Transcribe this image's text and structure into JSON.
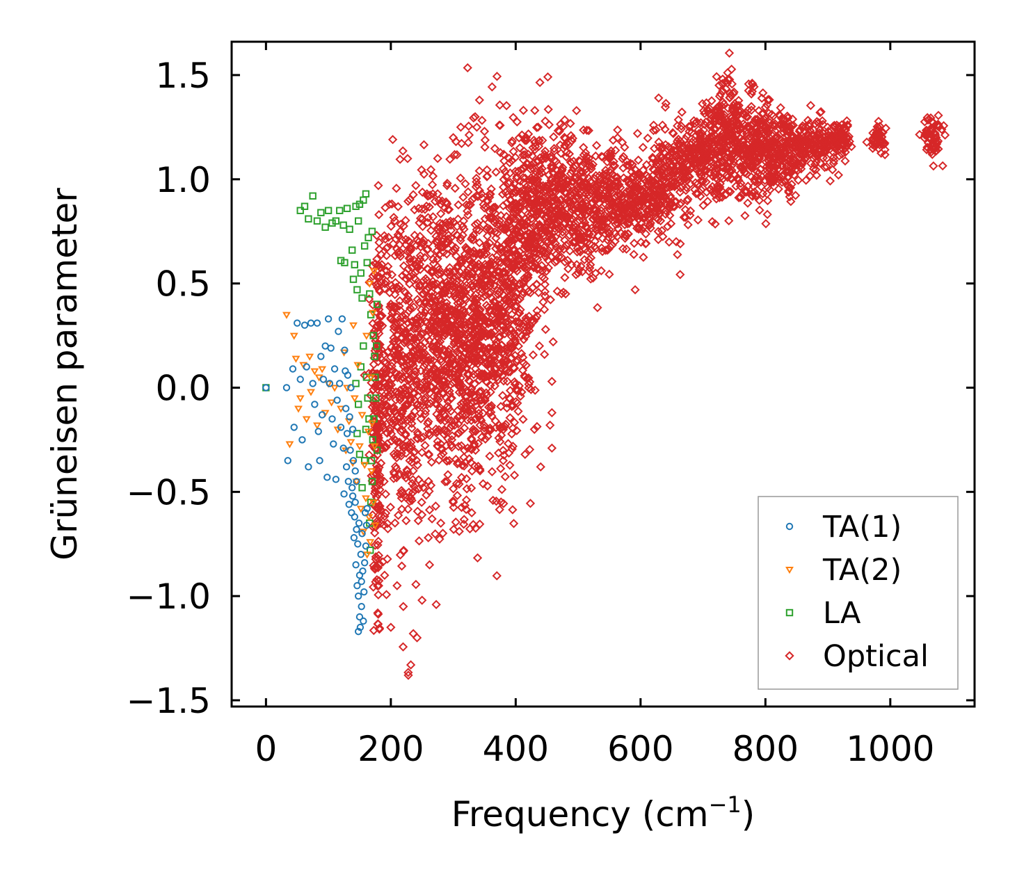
{
  "chart_data": {
    "type": "scatter",
    "title": "",
    "xlabel": "Frequency (cm",
    "xlabel_sup": "−1",
    "xlabel_close": ")",
    "ylabel": "Grüneisen parameter",
    "xlim": [
      -55,
      1135
    ],
    "ylim": [
      -1.53,
      1.66
    ],
    "xticks": [
      0,
      200,
      400,
      600,
      800,
      1000
    ],
    "xtick_labels": [
      "0",
      "200",
      "400",
      "600",
      "800",
      "1000"
    ],
    "yticks": [
      -1.5,
      -1.0,
      -0.5,
      0.0,
      0.5,
      1.0,
      1.5
    ],
    "ytick_labels": [
      "−1.5",
      "−1.0",
      "−0.5",
      "0.0",
      "0.5",
      "1.0",
      "1.5"
    ],
    "grid": false,
    "legend_position": "lower-right",
    "series": [
      {
        "name": "TA(1)",
        "marker": "circle",
        "color": "#1f77b4",
        "points": [
          [
            0,
            0.0
          ],
          [
            33,
            0.0
          ],
          [
            35,
            -0.35
          ],
          [
            43,
            0.09
          ],
          [
            45,
            -0.19
          ],
          [
            50,
            0.31
          ],
          [
            55,
            0.04
          ],
          [
            58,
            -0.25
          ],
          [
            62,
            0.3
          ],
          [
            65,
            0.1
          ],
          [
            68,
            -0.38
          ],
          [
            72,
            0.31
          ],
          [
            75,
            0.02
          ],
          [
            78,
            -0.08
          ],
          [
            82,
            0.31
          ],
          [
            84,
            -0.21
          ],
          [
            86,
            -0.35
          ],
          [
            88,
            0.15
          ],
          [
            90,
            -0.13
          ],
          [
            92,
            0.04
          ],
          [
            95,
            0.2
          ],
          [
            98,
            -0.43
          ],
          [
            100,
            0.33
          ],
          [
            102,
            0.02
          ],
          [
            104,
            0.19
          ],
          [
            106,
            -0.15
          ],
          [
            108,
            -0.27
          ],
          [
            110,
            0.09
          ],
          [
            112,
            -0.44
          ],
          [
            114,
            -0.06
          ],
          [
            116,
            0.27
          ],
          [
            118,
            0.02
          ],
          [
            120,
            -0.19
          ],
          [
            122,
            0.33
          ],
          [
            124,
            -0.29
          ],
          [
            125,
            -0.51
          ],
          [
            126,
            0.18
          ],
          [
            127,
            0.08
          ],
          [
            128,
            -0.1
          ],
          [
            129,
            -0.38
          ],
          [
            130,
            -0.22
          ],
          [
            131,
            0.06
          ],
          [
            132,
            -0.45
          ],
          [
            133,
            -0.56
          ],
          [
            134,
            -0.14
          ],
          [
            135,
            -0.3
          ],
          [
            136,
            0.0
          ],
          [
            137,
            -0.6
          ],
          [
            138,
            -0.48
          ],
          [
            139,
            -0.2
          ],
          [
            140,
            -0.35
          ],
          [
            141,
            -0.72
          ],
          [
            142,
            -0.62
          ],
          [
            143,
            -0.55
          ],
          [
            144,
            -0.85
          ],
          [
            145,
            -0.45
          ],
          [
            146,
            -0.95
          ],
          [
            147,
            -0.75
          ],
          [
            148,
            -1.0
          ],
          [
            149,
            -0.65
          ],
          [
            150,
            -0.9
          ],
          [
            151,
            -1.15
          ],
          [
            152,
            -0.8
          ],
          [
            153,
            -1.05
          ],
          [
            154,
            -0.7
          ],
          [
            155,
            -0.88
          ],
          [
            156,
            -1.12
          ],
          [
            157,
            -0.98
          ],
          [
            158,
            -0.84
          ],
          [
            159,
            -0.6
          ],
          [
            160,
            -0.76
          ],
          [
            161,
            -0.66
          ],
          [
            162,
            -0.58
          ],
          [
            148,
            -1.17
          ],
          [
            150,
            -1.1
          ],
          [
            153,
            -0.93
          ],
          [
            145,
            -0.68
          ],
          [
            143,
            -0.4
          ],
          [
            139,
            -0.52
          ]
        ]
      },
      {
        "name": "TA(2)",
        "marker": "triangle-down",
        "color": "#ff7f0e",
        "points": [
          [
            33,
            0.35
          ],
          [
            38,
            -0.27
          ],
          [
            45,
            0.25
          ],
          [
            48,
            0.14
          ],
          [
            52,
            -0.1
          ],
          [
            55,
            -0.05
          ],
          [
            60,
            0.11
          ],
          [
            65,
            -0.15
          ],
          [
            70,
            0.15
          ],
          [
            72,
            -0.02
          ],
          [
            78,
            0.08
          ],
          [
            82,
            -0.18
          ],
          [
            85,
            0.05
          ],
          [
            90,
            0.09
          ],
          [
            95,
            -0.12
          ],
          [
            100,
            0.02
          ],
          [
            105,
            -0.07
          ],
          [
            110,
            0.0
          ],
          [
            115,
            -0.2
          ],
          [
            120,
            -0.1
          ],
          [
            125,
            0.17
          ],
          [
            128,
            -0.3
          ],
          [
            130,
            0.0
          ],
          [
            133,
            -0.16
          ],
          [
            136,
            -0.26
          ],
          [
            139,
            -0.36
          ],
          [
            140,
            0.3
          ],
          [
            142,
            -0.05
          ],
          [
            145,
            -0.45
          ],
          [
            147,
            0.11
          ],
          [
            150,
            -0.28
          ],
          [
            152,
            -0.58
          ],
          [
            154,
            -0.13
          ],
          [
            156,
            -0.69
          ],
          [
            158,
            -0.37
          ],
          [
            160,
            -0.53
          ],
          [
            161,
            0.25
          ],
          [
            162,
            -0.8
          ],
          [
            164,
            -0.21
          ],
          [
            165,
            -0.62
          ],
          [
            166,
            0.5
          ],
          [
            167,
            -0.74
          ],
          [
            168,
            0.05
          ],
          [
            169,
            -0.4
          ],
          [
            170,
            -0.17
          ],
          [
            171,
            0.36
          ],
          [
            172,
            -0.55
          ],
          [
            173,
            0.56
          ],
          [
            174,
            -0.28
          ],
          [
            175,
            -0.66
          ]
        ]
      },
      {
        "name": "LA",
        "marker": "square",
        "color": "#2ca02c",
        "points": [
          [
            0,
            0.0
          ],
          [
            55,
            0.85
          ],
          [
            62,
            0.87
          ],
          [
            68,
            0.81
          ],
          [
            75,
            0.92
          ],
          [
            82,
            0.8
          ],
          [
            88,
            0.84
          ],
          [
            95,
            0.77
          ],
          [
            100,
            0.85
          ],
          [
            106,
            0.79
          ],
          [
            112,
            0.8
          ],
          [
            118,
            0.85
          ],
          [
            120,
            0.61
          ],
          [
            124,
            0.78
          ],
          [
            126,
            0.6
          ],
          [
            130,
            0.86
          ],
          [
            134,
            0.76
          ],
          [
            138,
            0.66
          ],
          [
            140,
            0.52
          ],
          [
            142,
            0.59
          ],
          [
            144,
            0.87
          ],
          [
            146,
            0.47
          ],
          [
            148,
            0.8
          ],
          [
            150,
            0.88
          ],
          [
            152,
            0.55
          ],
          [
            154,
            0.43
          ],
          [
            156,
            0.9
          ],
          [
            158,
            0.68
          ],
          [
            160,
            0.93
          ],
          [
            162,
            0.6
          ],
          [
            164,
            0.72
          ],
          [
            166,
            0.45
          ],
          [
            168,
            0.35
          ],
          [
            170,
            0.75
          ],
          [
            172,
            0.25
          ],
          [
            174,
            0.15
          ],
          [
            175,
            0.05
          ],
          [
            176,
            -0.05
          ],
          [
            173,
            -0.15
          ],
          [
            171,
            -0.25
          ],
          [
            169,
            -0.35
          ],
          [
            170,
            -0.45
          ],
          [
            168,
            -0.55
          ],
          [
            166,
            -0.65
          ],
          [
            167,
            -0.78
          ],
          [
            165,
            -0.15
          ],
          [
            163,
            -0.05
          ],
          [
            161,
            0.05
          ],
          [
            160,
            -0.2
          ],
          [
            158,
            -0.35
          ],
          [
            156,
            0.2
          ],
          [
            154,
            -0.48
          ],
          [
            152,
            0.1
          ],
          [
            150,
            -0.32
          ],
          [
            148,
            -0.08
          ],
          [
            146,
            -0.22
          ],
          [
            144,
            0.02
          ],
          [
            178,
            0.4
          ],
          [
            178,
            -0.3
          ],
          [
            177,
            0.2
          ]
        ]
      },
      {
        "name": "Optical",
        "marker": "diamond",
        "color": "#d62728",
        "blobs": [
          {
            "x": 178,
            "y": -0.2,
            "sx": 5,
            "sy": 0.55,
            "n": 170
          },
          {
            "x": 205,
            "y": 0.05,
            "sx": 16,
            "sy": 0.45,
            "n": 240
          },
          {
            "x": 240,
            "y": 0.1,
            "sx": 24,
            "sy": 0.38,
            "n": 320
          },
          {
            "x": 280,
            "y": 0.3,
            "sx": 26,
            "sy": 0.36,
            "n": 380
          },
          {
            "x": 320,
            "y": 0.25,
            "sx": 24,
            "sy": 0.4,
            "n": 380
          },
          {
            "x": 360,
            "y": 0.35,
            "sx": 24,
            "sy": 0.38,
            "n": 360
          },
          {
            "x": 395,
            "y": 0.45,
            "sx": 22,
            "sy": 0.38,
            "n": 300
          },
          {
            "x": 425,
            "y": 0.85,
            "sx": 20,
            "sy": 0.22,
            "n": 240
          },
          {
            "x": 465,
            "y": 0.9,
            "sx": 22,
            "sy": 0.18,
            "n": 220
          },
          {
            "x": 510,
            "y": 0.85,
            "sx": 24,
            "sy": 0.15,
            "n": 200
          },
          {
            "x": 555,
            "y": 0.88,
            "sx": 22,
            "sy": 0.12,
            "n": 180
          },
          {
            "x": 600,
            "y": 0.9,
            "sx": 22,
            "sy": 0.08,
            "n": 180
          },
          {
            "x": 645,
            "y": 1.0,
            "sx": 18,
            "sy": 0.13,
            "n": 180
          },
          {
            "x": 700,
            "y": 1.12,
            "sx": 22,
            "sy": 0.1,
            "n": 220
          },
          {
            "x": 745,
            "y": 1.2,
            "sx": 18,
            "sy": 0.15,
            "n": 240
          },
          {
            "x": 790,
            "y": 1.13,
            "sx": 18,
            "sy": 0.12,
            "n": 200
          },
          {
            "x": 830,
            "y": 1.12,
            "sx": 20,
            "sy": 0.1,
            "n": 180
          },
          {
            "x": 875,
            "y": 1.17,
            "sx": 18,
            "sy": 0.06,
            "n": 140
          },
          {
            "x": 920,
            "y": 1.2,
            "sx": 12,
            "sy": 0.04,
            "n": 80
          },
          {
            "x": 980,
            "y": 1.2,
            "sx": 6,
            "sy": 0.03,
            "n": 50
          },
          {
            "x": 1068,
            "y": 1.2,
            "sx": 8,
            "sy": 0.05,
            "n": 60
          }
        ],
        "points": [
          [
            228,
            -1.38
          ],
          [
            232,
            -1.33
          ],
          [
            236,
            -1.18
          ],
          [
            242,
            -1.2
          ],
          [
            220,
            -1.05
          ],
          [
            250,
            -1.02
          ],
          [
            200,
            -1.15
          ],
          [
            210,
            -0.95
          ],
          [
            262,
            -0.85
          ],
          [
            190,
            -0.9
          ],
          [
            240,
            0.97
          ],
          [
            275,
            1.1
          ],
          [
            300,
            1.2
          ],
          [
            312,
            1.25
          ],
          [
            335,
            1.3
          ],
          [
            342,
            1.38
          ],
          [
            350,
            1.23
          ],
          [
            180,
            0.97
          ],
          [
            198,
            0.88
          ],
          [
            215,
            0.75
          ],
          [
            230,
            0.7
          ],
          [
            260,
            0.92
          ],
          [
            290,
            0.97
          ],
          [
            380,
            1.05
          ],
          [
            420,
            1.12
          ],
          [
            458,
            -0.12
          ],
          [
            458,
            0.03
          ],
          [
            458,
            -0.29
          ],
          [
            460,
            0.22
          ],
          [
            470,
            1.23
          ],
          [
            480,
            0.45
          ],
          [
            500,
            0.55
          ],
          [
            380,
            -0.35
          ],
          [
            398,
            -0.42
          ],
          [
            415,
            -0.32
          ],
          [
            430,
            -0.2
          ],
          [
            440,
            -0.38
          ],
          [
            455,
            -0.18
          ],
          [
            260,
            -0.72
          ],
          [
            280,
            -0.65
          ],
          [
            300,
            -0.55
          ],
          [
            330,
            -0.4
          ],
          [
            290,
            -0.45
          ]
        ]
      }
    ]
  }
}
